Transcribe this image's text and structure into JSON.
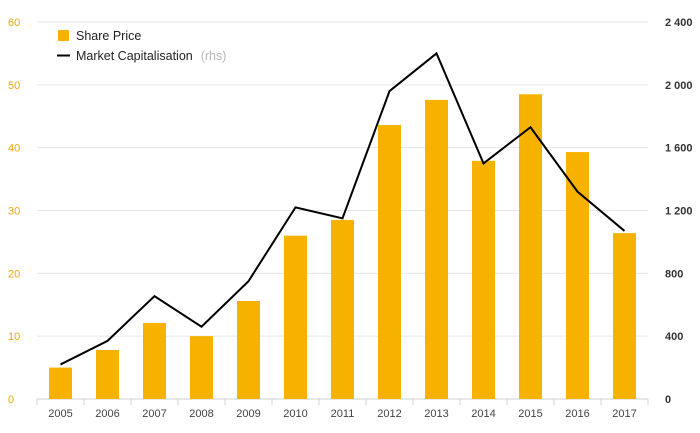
{
  "chart_data": {
    "type": "bar",
    "categories": [
      "2005",
      "2006",
      "2007",
      "2008",
      "2009",
      "2010",
      "2011",
      "2012",
      "2013",
      "2014",
      "2015",
      "2016",
      "2017"
    ],
    "series": [
      {
        "name": "Share Price",
        "type": "bar",
        "axis": "left",
        "values": [
          5.0,
          7.8,
          12.1,
          10.0,
          15.6,
          26.0,
          28.5,
          43.6,
          47.6,
          37.9,
          48.5,
          39.3,
          26.4
        ]
      },
      {
        "name": "Market Capitalisation",
        "name_suffix": "(rhs)",
        "type": "line",
        "axis": "right",
        "values": [
          220,
          370,
          655,
          460,
          750,
          1220,
          1150,
          1960,
          2200,
          1500,
          1730,
          1320,
          1070
        ]
      }
    ],
    "ylim_left": [
      0,
      60
    ],
    "yticks_left": [
      "0",
      "10",
      "20",
      "30",
      "40",
      "50",
      "60"
    ],
    "ylim_right": [
      0,
      2400
    ],
    "yticks_right": [
      "0",
      "400",
      "800",
      "1 200",
      "1 600",
      "2 000",
      "2 400"
    ],
    "grid": true,
    "legend_position": "top-left",
    "colors": {
      "bar": "#f7b200",
      "line": "#000000",
      "left_axis_text": "#f0a800",
      "grid": "#e6e6e6"
    }
  }
}
